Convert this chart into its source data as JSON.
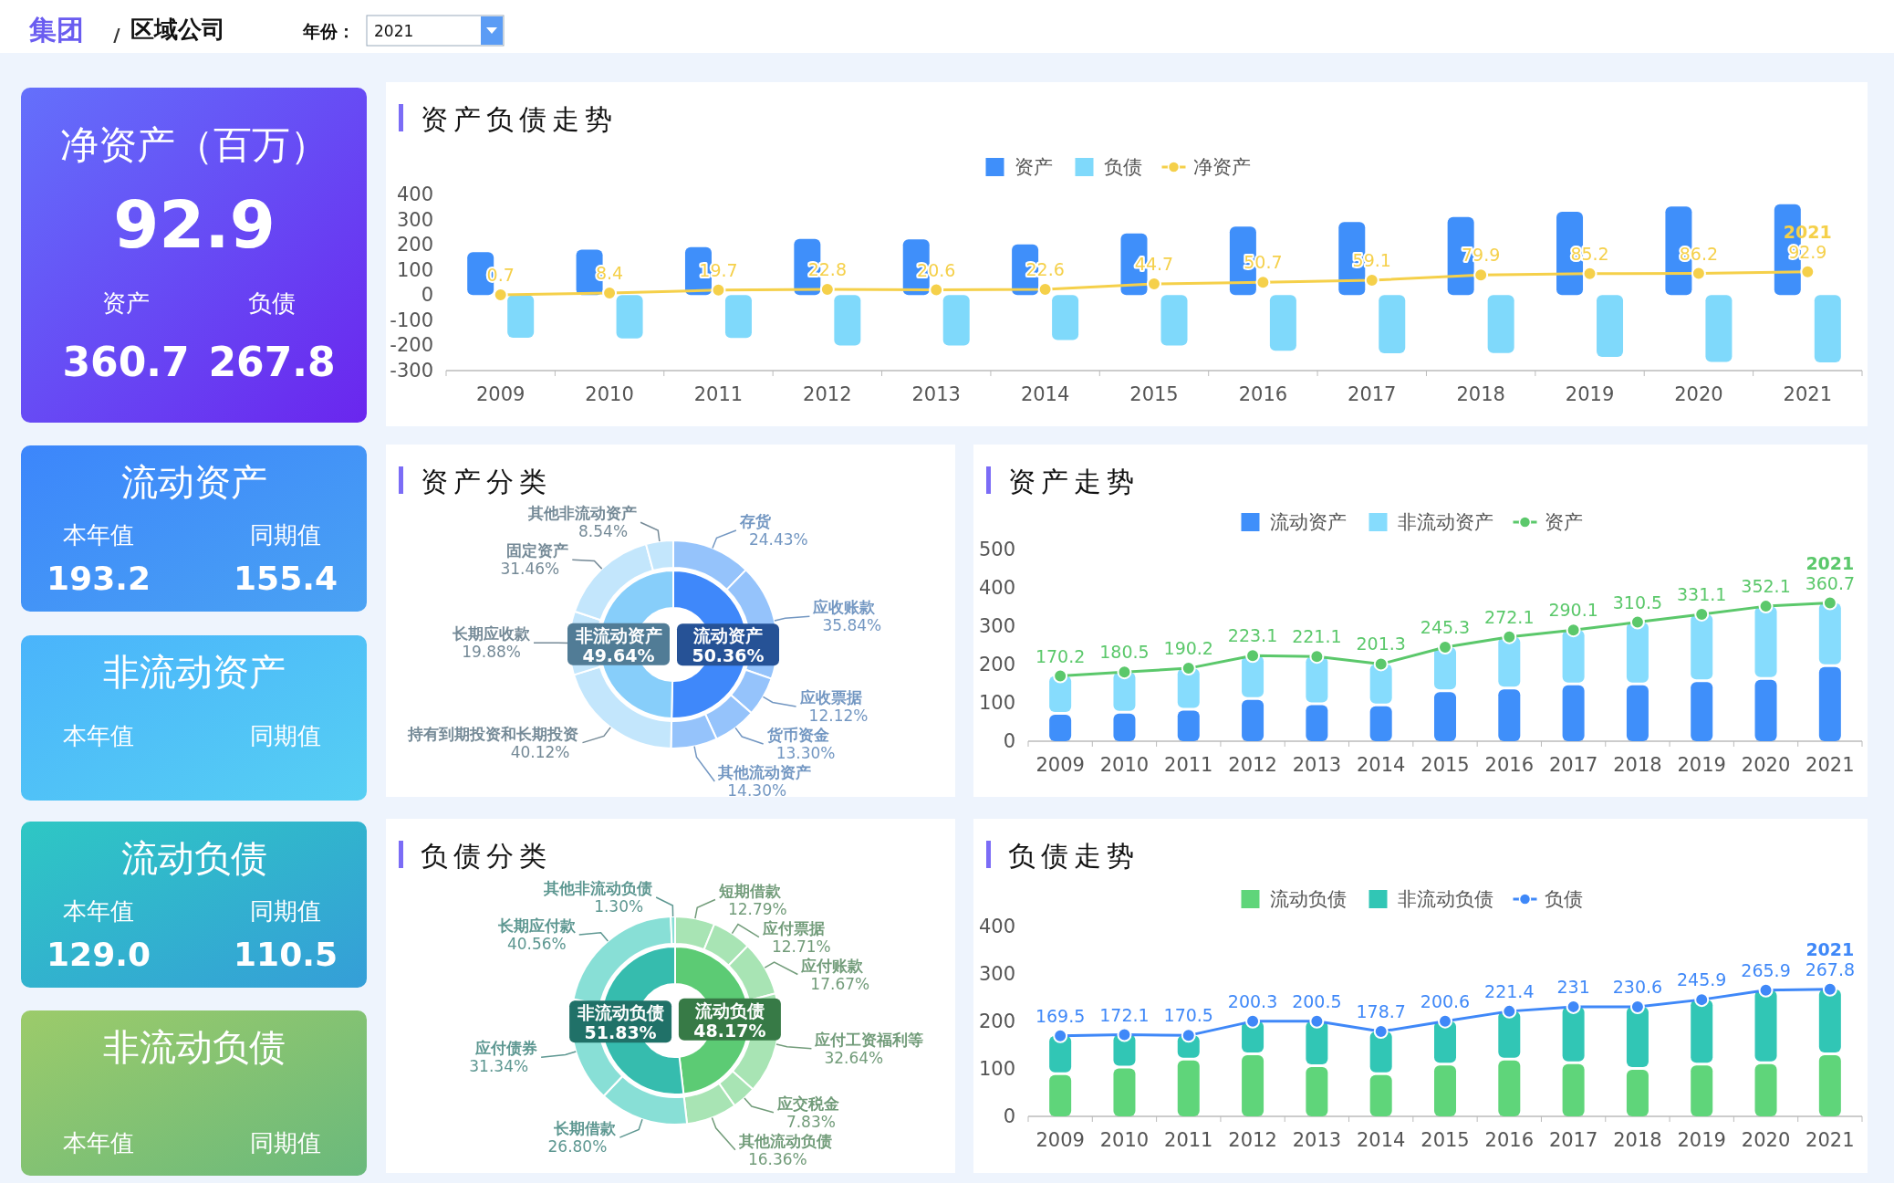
{
  "chart_data": [
    {
      "type": "other",
      "annotations": [
        "集团",
        "/",
        "区域公司",
        "年份：",
        "2021"
      ]
    },
    {
      "type": "other",
      "title": "净资产（百万）",
      "annotations": [
        "92.9",
        "资产",
        "负债",
        "360.7",
        "267.8"
      ]
    },
    {
      "type": "other",
      "title": "流动资产",
      "annotations": [
        "本年值",
        "同期值",
        "193.2",
        "155.4"
      ]
    },
    {
      "type": "other",
      "title": "非流动资产",
      "annotations": [
        "本年值",
        "同期值"
      ]
    },
    {
      "type": "other",
      "title": "流动负债",
      "annotations": [
        "本年值",
        "同期值",
        "129.0",
        "110.5"
      ]
    },
    {
      "type": "other",
      "title": "非流动负债",
      "annotations": [
        "本年值",
        "同期值"
      ]
    },
    {
      "type": "bar",
      "title": "资产负债走势",
      "categories": [
        "2009",
        "2010",
        "2011",
        "2012",
        "2013",
        "2014",
        "2015",
        "2016",
        "2017",
        "2018",
        "2019",
        "2020",
        "2021"
      ],
      "legend": "top",
      "marker": "circle",
      "ylim": [
        -300,
        400
      ],
      "yticks": [
        -300,
        -200,
        -100,
        0,
        100,
        200,
        300,
        400
      ],
      "series": [
        {
          "name": "资产",
          "color": "#3f8ffa",
          "values": [
            170.2,
            180.5,
            190.2,
            223.1,
            221.1,
            201.3,
            245.3,
            272.1,
            290.1,
            310.5,
            331.1,
            352.1,
            360.7
          ]
        },
        {
          "name": "负债",
          "color": "#7fd9fb",
          "values": [
            -169.5,
            -172.1,
            -170.5,
            -200.3,
            -200.5,
            -178.7,
            -200.6,
            -221.4,
            -231,
            -230.6,
            -245.9,
            -265.9,
            -267.8
          ]
        },
        {
          "name": "净资产",
          "type": "line",
          "color": "#f5d04a",
          "values": [
            0.7,
            8.4,
            19.7,
            22.8,
            20.6,
            22.6,
            44.7,
            50.7,
            59.1,
            79.9,
            85.2,
            86.2,
            92.9
          ],
          "value_labels": [
            "0.7",
            "8.4",
            "19.7",
            "22.8",
            "20.6",
            "22.6",
            "44.7",
            "50.7",
            "59.1",
            "79.9",
            "85.2",
            "86.2",
            "92.9"
          ]
        }
      ],
      "annotations": [
        {
          "text": "2021",
          "x": "2021",
          "y": 92.9
        }
      ]
    },
    {
      "type": "donut",
      "title": "资产分类",
      "categories": [
        "流动资产",
        "非流动资产"
      ],
      "values": [
        50.36,
        49.64
      ],
      "colors": [
        "#3f88fa",
        "#87cefa"
      ],
      "value_labels": [
        "50.36%",
        "49.64%"
      ]
    },
    {
      "type": "donut",
      "categories": [
        "存货",
        "应收账款",
        "应收票据",
        "货币资金",
        "其他流动资产"
      ],
      "values": [
        24.43,
        35.84,
        12.12,
        13.3,
        14.3
      ],
      "colors": [
        "#95c3fb",
        "#95c3fb",
        "#95c3fb",
        "#95c3fb",
        "#95c3fb"
      ],
      "value_labels": [
        "24.43%",
        "35.84%",
        "12.12%",
        "13.30%",
        "14.30%"
      ]
    },
    {
      "type": "donut",
      "categories": [
        "持有到期投资和长期投资",
        "长期应收款",
        "固定资产",
        "其他非流动资产"
      ],
      "values": [
        40.12,
        19.88,
        31.46,
        8.54
      ],
      "colors": [
        "#c3e6fc",
        "#c3e6fc",
        "#c3e6fc",
        "#c3e6fc"
      ],
      "value_labels": [
        "40.12%",
        "19.88%",
        "31.46%",
        "8.54%"
      ]
    },
    {
      "type": "bar",
      "title": "资产走势",
      "stacked": true,
      "categories": [
        "2009",
        "2010",
        "2011",
        "2012",
        "2013",
        "2014",
        "2015",
        "2016",
        "2017",
        "2018",
        "2019",
        "2020",
        "2021"
      ],
      "legend": "top",
      "marker": "circle",
      "ylim": [
        0,
        500
      ],
      "yticks": [
        0,
        100,
        200,
        300,
        400,
        500
      ],
      "series": [
        {
          "name": "流动资产",
          "color": "#3f8ffa",
          "values": [
            69,
            72,
            80,
            108,
            94,
            91,
            128,
            135,
            146,
            146,
            154,
            160,
            193.2
          ]
        },
        {
          "name": "非流动资产",
          "color": "#86dcfd",
          "values": [
            101,
            108,
            110,
            115,
            127,
            110,
            117,
            137,
            144,
            164,
            177,
            192,
            167.5
          ]
        },
        {
          "name": "资产",
          "type": "line",
          "color": "#5bc86b",
          "values": [
            170.2,
            180.5,
            190.2,
            223.1,
            221.1,
            201.3,
            245.3,
            272.1,
            290.1,
            310.5,
            331.1,
            352.1,
            360.7
          ],
          "value_labels": [
            "170.2",
            "180.5",
            "190.2",
            "223.1",
            "221.1",
            "201.3",
            "245.3",
            "272.1",
            "290.1",
            "310.5",
            "331.1",
            "352.1",
            "360.7"
          ]
        }
      ],
      "annotations": [
        {
          "text": "2021",
          "x": "2021",
          "y": 360.7
        }
      ]
    },
    {
      "type": "donut",
      "title": "负债分类",
      "categories": [
        "流动负债",
        "非流动负债"
      ],
      "values": [
        48.17,
        51.83
      ],
      "colors": [
        "#5ccb74",
        "#36bcae"
      ],
      "value_labels": [
        "48.17%",
        "51.83%"
      ]
    },
    {
      "type": "donut",
      "categories": [
        "短期借款",
        "应付票据",
        "应付账款",
        "应付工资福利等",
        "应交税金",
        "其他流动负债"
      ],
      "values": [
        12.79,
        12.71,
        17.67,
        32.64,
        7.83,
        16.36
      ],
      "colors": [
        "#a8e4b4",
        "#a8e4b4",
        "#a8e4b4",
        "#a8e4b4",
        "#a8e4b4",
        "#a8e4b4"
      ],
      "value_labels": [
        "12.79%",
        "12.71%",
        "17.67%",
        "32.64%",
        "7.83%",
        "16.36%"
      ]
    },
    {
      "type": "donut",
      "categories": [
        "长期借款",
        "应付债券",
        "长期应付款",
        "其他非流动负债"
      ],
      "values": [
        26.8,
        31.34,
        40.56,
        1.3
      ],
      "colors": [
        "#88dfd6",
        "#88dfd6",
        "#88dfd6",
        "#88dfd6"
      ],
      "value_labels": [
        "26.80%",
        "31.34%",
        "40.56%",
        "1.30%"
      ]
    },
    {
      "type": "bar",
      "title": "负债走势",
      "stacked": true,
      "categories": [
        "2009",
        "2010",
        "2011",
        "2012",
        "2013",
        "2014",
        "2015",
        "2016",
        "2017",
        "2018",
        "2019",
        "2020",
        "2021"
      ],
      "legend": "top",
      "marker": "circle",
      "ylim": [
        0,
        400
      ],
      "yticks": [
        0,
        100,
        200,
        300,
        400
      ],
      "series": [
        {
          "name": "流动负债",
          "color": "#5fd57a",
          "values": [
            87,
            101,
            118,
            129,
            104,
            87,
            107,
            118,
            110,
            98,
            107,
            110,
            129
          ]
        },
        {
          "name": "非流动负债",
          "color": "#31c6b5",
          "values": [
            82.5,
            71,
            52.5,
            71.3,
            96.5,
            91.7,
            93.6,
            103.4,
            121,
            132.6,
            138.9,
            155.9,
            138.8
          ]
        },
        {
          "name": "负债",
          "type": "line",
          "color": "#3f88f8",
          "values": [
            169.5,
            172.1,
            170.5,
            200.3,
            200.5,
            178.7,
            200.6,
            221.4,
            231,
            230.6,
            245.9,
            265.9,
            267.8
          ],
          "value_labels": [
            "169.5",
            "172.1",
            "170.5",
            "200.3",
            "200.5",
            "178.7",
            "200.6",
            "221.4",
            "231",
            "230.6",
            "245.9",
            "265.9",
            "267.8"
          ]
        }
      ],
      "annotations": [
        {
          "text": "2021",
          "x": "2021",
          "y": 267.8
        }
      ]
    }
  ]
}
